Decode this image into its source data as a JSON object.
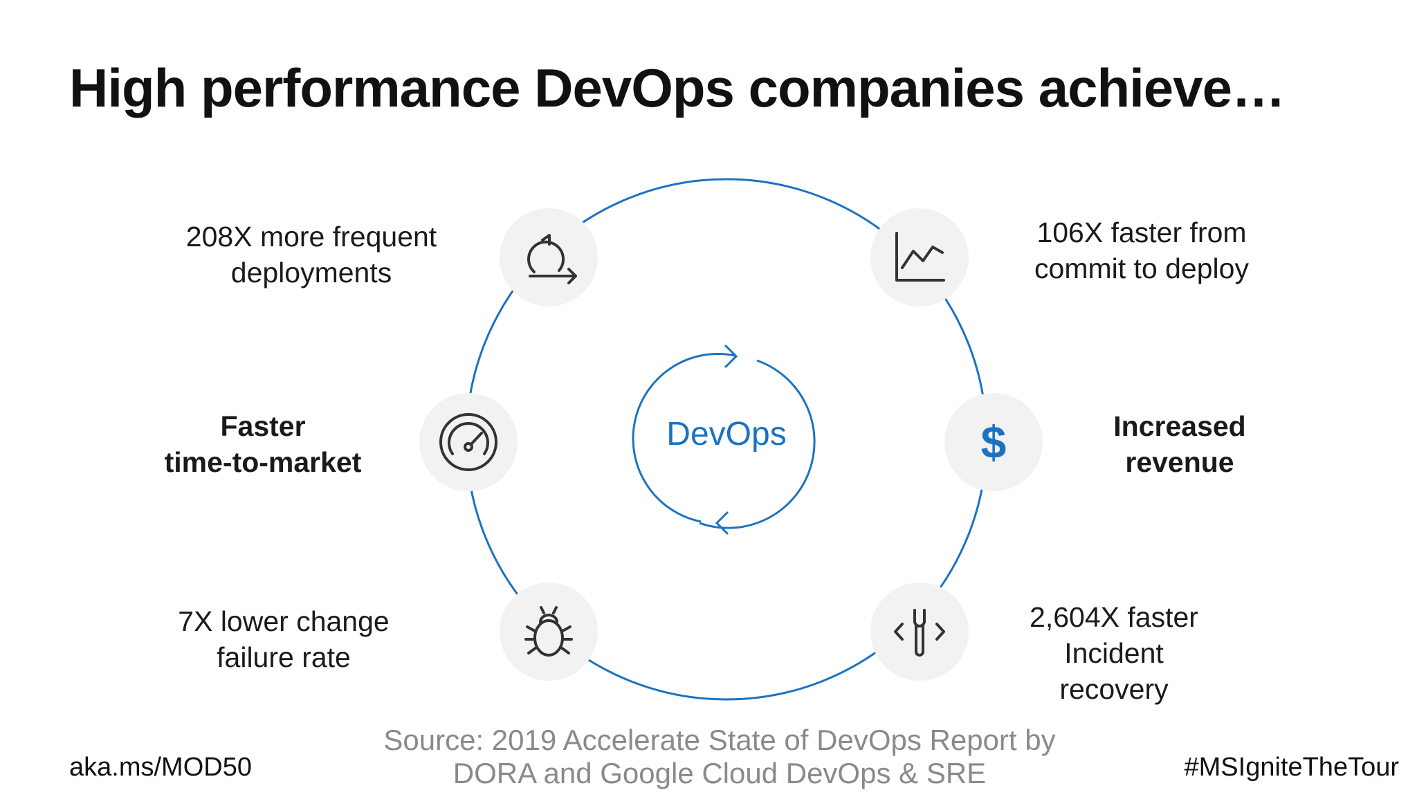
{
  "title": "High performance DevOps companies achieve…",
  "center": {
    "label": "DevOps"
  },
  "stats": {
    "deployments": [
      "208X more frequent",
      "deployments"
    ],
    "time_to_market": [
      "Faster",
      "time-to-market"
    ],
    "change_failure": [
      "7X lower change",
      "failure rate"
    ],
    "commit_to_deploy": [
      "106X faster from",
      "commit to deploy"
    ],
    "revenue": [
      "Increased",
      "revenue"
    ],
    "incident_recovery": [
      "2,604X faster",
      "Incident",
      "recovery"
    ]
  },
  "icons": {
    "top_left": "refresh-arrow-icon",
    "middle_left": "speedometer-icon",
    "bottom_left": "bug-icon",
    "top_right": "line-chart-icon",
    "middle_right": "dollar-icon",
    "bottom_right": "code-wrench-icon",
    "dollar_symbol": "$"
  },
  "source": [
    "Source:  2019 Accelerate State of DevOps Report by",
    "DORA and Google Cloud DevOps & SRE"
  ],
  "footer": {
    "left": "aka.ms/MOD50",
    "right": "#MSIgniteTheTour"
  },
  "colors": {
    "accent": "#1a73c1",
    "node_bg": "#f2f2f2",
    "source_text": "#8a8a8a"
  }
}
